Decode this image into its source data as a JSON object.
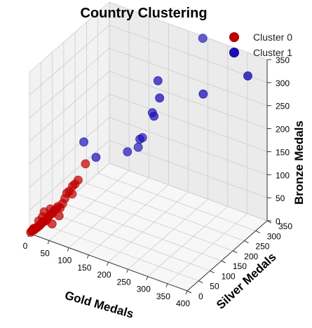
{
  "chart_data": {
    "type": "scatter",
    "title": "Country Clustering",
    "xlabel": "Gold Medals",
    "ylabel": "Silver Medals",
    "zlabel": "Bronze Medals",
    "xlim": [
      0,
      400
    ],
    "ylim": [
      0,
      350
    ],
    "zlim": [
      0,
      350
    ],
    "xticks": [
      0,
      50,
      100,
      150,
      200,
      250,
      300,
      350,
      400
    ],
    "yticks": [
      0,
      50,
      100,
      150,
      200,
      250,
      300,
      350
    ],
    "zticks": [
      0,
      50,
      100,
      150,
      200,
      250,
      300,
      350
    ],
    "grid": true,
    "legend_position": "top-right",
    "series": [
      {
        "name": "Cluster 0",
        "color": "#c00000",
        "points": [
          [
            2,
            2,
            2
          ],
          [
            3,
            5,
            4
          ],
          [
            5,
            3,
            6
          ],
          [
            6,
            6,
            8
          ],
          [
            8,
            7,
            7
          ],
          [
            10,
            9,
            10
          ],
          [
            12,
            10,
            12
          ],
          [
            14,
            12,
            13
          ],
          [
            16,
            14,
            15
          ],
          [
            18,
            16,
            17
          ],
          [
            20,
            18,
            20
          ],
          [
            22,
            20,
            22
          ],
          [
            25,
            22,
            25
          ],
          [
            4,
            10,
            6
          ],
          [
            9,
            4,
            12
          ],
          [
            15,
            8,
            14
          ],
          [
            28,
            24,
            26
          ],
          [
            30,
            28,
            30
          ],
          [
            32,
            30,
            35
          ],
          [
            35,
            33,
            38
          ],
          [
            38,
            35,
            40
          ],
          [
            40,
            38,
            45
          ],
          [
            45,
            40,
            50
          ],
          [
            48,
            42,
            55
          ],
          [
            50,
            48,
            50
          ],
          [
            55,
            50,
            60
          ],
          [
            58,
            55,
            70
          ],
          [
            60,
            60,
            80
          ],
          [
            65,
            62,
            85
          ],
          [
            70,
            68,
            95
          ],
          [
            75,
            70,
            100
          ],
          [
            80,
            75,
            108
          ],
          [
            90,
            90,
            140
          ],
          [
            40,
            30,
            20
          ],
          [
            55,
            35,
            40
          ],
          [
            20,
            30,
            40
          ],
          [
            18,
            26,
            30
          ],
          [
            12,
            20,
            22
          ],
          [
            30,
            40,
            45
          ],
          [
            62,
            80,
            70
          ]
        ]
      },
      {
        "name": "Cluster 1",
        "color": "#1a0fb5",
        "points": [
          [
            80,
            100,
            180
          ],
          [
            105,
            110,
            150
          ],
          [
            150,
            170,
            150
          ],
          [
            160,
            200,
            150
          ],
          [
            170,
            190,
            175
          ],
          [
            200,
            200,
            230
          ],
          [
            220,
            190,
            280
          ],
          [
            210,
            200,
            310
          ],
          [
            290,
            260,
            280
          ],
          [
            380,
            300,
            330
          ],
          [
            260,
            310,
            370
          ],
          [
            190,
            210,
            230
          ],
          [
            165,
            210,
            168
          ]
        ]
      }
    ]
  }
}
